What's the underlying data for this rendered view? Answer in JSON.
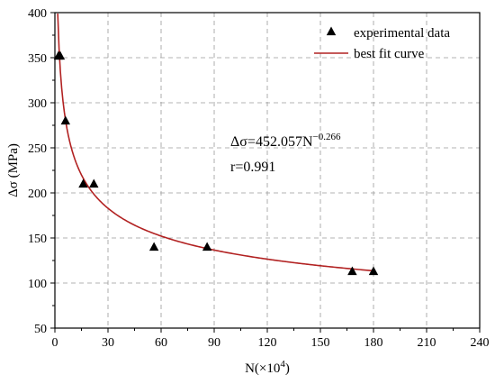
{
  "chart_data": {
    "type": "scatter",
    "xlabel_main": "N(×10",
    "xlabel_sup": "4",
    "xlabel_end": ")",
    "ylabel": "Δσ (MPa)",
    "xlim": [
      0,
      240
    ],
    "ylim": [
      50,
      400
    ],
    "xticks": [
      0,
      30,
      60,
      90,
      120,
      150,
      180,
      210,
      240
    ],
    "yticks": [
      50,
      100,
      150,
      200,
      250,
      300,
      350,
      400
    ],
    "grid": "dashed",
    "legend_position": "top-right",
    "series": [
      {
        "name": "experimental data",
        "marker": "triangle",
        "color": "#000000",
        "points": [
          {
            "x": 2,
            "y": 352
          },
          {
            "x": 3,
            "y": 352
          },
          {
            "x": 6,
            "y": 280
          },
          {
            "x": 16,
            "y": 210
          },
          {
            "x": 22,
            "y": 210
          },
          {
            "x": 56,
            "y": 140
          },
          {
            "x": 86,
            "y": 140
          },
          {
            "x": 168,
            "y": 113
          },
          {
            "x": 180,
            "y": 113
          }
        ]
      },
      {
        "name": "best fit curve",
        "kind": "power_fit",
        "color": "#b22222",
        "coefficient": 452.057,
        "exponent": -0.266,
        "x_range": [
          1.6,
          180
        ]
      }
    ],
    "annotations": {
      "equation_main": "Δσ=452.057N",
      "equation_exp": "−0.266",
      "r_value": "r=0.991"
    }
  }
}
